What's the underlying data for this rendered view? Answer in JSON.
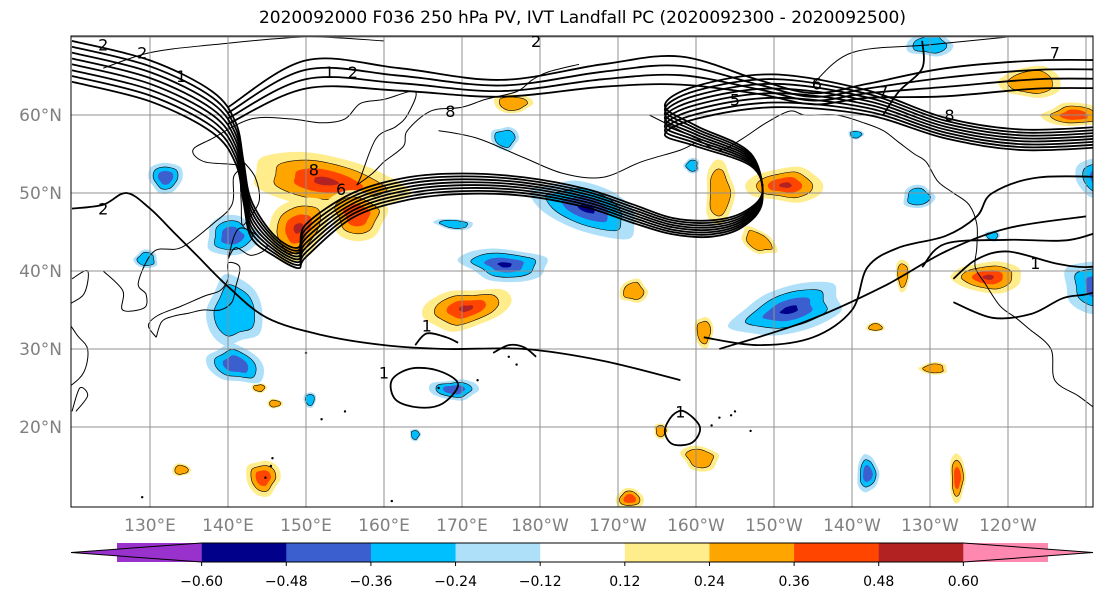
{
  "title": "2020092000 F036 250 hPa PV, IVT Landfall PC (2020092300 - 2020092500)",
  "map": {
    "lat_labels": [
      {
        "lat": 60,
        "text": "60°N"
      },
      {
        "lat": 50,
        "text": "50°N"
      },
      {
        "lat": 40,
        "text": "40°N"
      },
      {
        "lat": 30,
        "text": "30°N"
      },
      {
        "lat": 20,
        "text": "20°N"
      }
    ],
    "lon_labels": [
      {
        "lon": 130,
        "text": "130°E"
      },
      {
        "lon": 140,
        "text": "140°E"
      },
      {
        "lon": 150,
        "text": "150°E"
      },
      {
        "lon": 160,
        "text": "160°E"
      },
      {
        "lon": 170,
        "text": "170°E"
      },
      {
        "lon": 180,
        "text": "180°W"
      },
      {
        "lon": 190,
        "text": "170°W"
      },
      {
        "lon": 200,
        "text": "160°W"
      },
      {
        "lon": 210,
        "text": "150°W"
      },
      {
        "lon": 220,
        "text": "140°W"
      },
      {
        "lon": 230,
        "text": "130°W"
      },
      {
        "lon": 240,
        "text": "120°W"
      }
    ],
    "contour_labels": [
      {
        "text": "2",
        "lon": 124.0,
        "lat": 68.5
      },
      {
        "text": "2",
        "lon": 129.0,
        "lat": 67.5
      },
      {
        "text": "1",
        "lon": 134.0,
        "lat": 64.5
      },
      {
        "text": "1",
        "lon": 153.0,
        "lat": 65.0
      },
      {
        "text": "2",
        "lon": 156.0,
        "lat": 65.0
      },
      {
        "text": "2",
        "lon": 179.5,
        "lat": 69.0
      },
      {
        "text": "8",
        "lon": 168.5,
        "lat": 60.0
      },
      {
        "text": "8",
        "lon": 151.0,
        "lat": 52.5
      },
      {
        "text": "6",
        "lon": 154.5,
        "lat": 50.0
      },
      {
        "text": "5",
        "lon": 205.0,
        "lat": 61.5
      },
      {
        "text": "6",
        "lon": 215.5,
        "lat": 63.5
      },
      {
        "text": "7",
        "lon": 224.0,
        "lat": 62.5
      },
      {
        "text": "8",
        "lon": 232.5,
        "lat": 59.5
      },
      {
        "text": "2",
        "lon": 124.0,
        "lat": 47.5
      },
      {
        "text": "1",
        "lon": 165.5,
        "lat": 32.5
      },
      {
        "text": "1",
        "lon": 160.0,
        "lat": 26.5
      },
      {
        "text": "1",
        "lon": 198.0,
        "lat": 21.5
      },
      {
        "text": "1",
        "lon": 243.5,
        "lat": 40.5
      },
      {
        "text": "7",
        "lon": 246.0,
        "lat": 67.5
      }
    ],
    "contour_line_color": "#000000",
    "grid_color": "#909090"
  },
  "colorbar": {
    "tick_labels": [
      "−0.60",
      "−0.48",
      "−0.36",
      "−0.24",
      "−0.12",
      "0.12",
      "0.24",
      "0.36",
      "0.48",
      "0.60"
    ],
    "colors": [
      "#9932cc",
      "#00008b",
      "#3b5fcf",
      "#00bfff",
      "#aee0fa",
      "#ffffff",
      "#ffec8b",
      "#ffa500",
      "#ff4500",
      "#b22222",
      "#ff88b0"
    ]
  }
}
